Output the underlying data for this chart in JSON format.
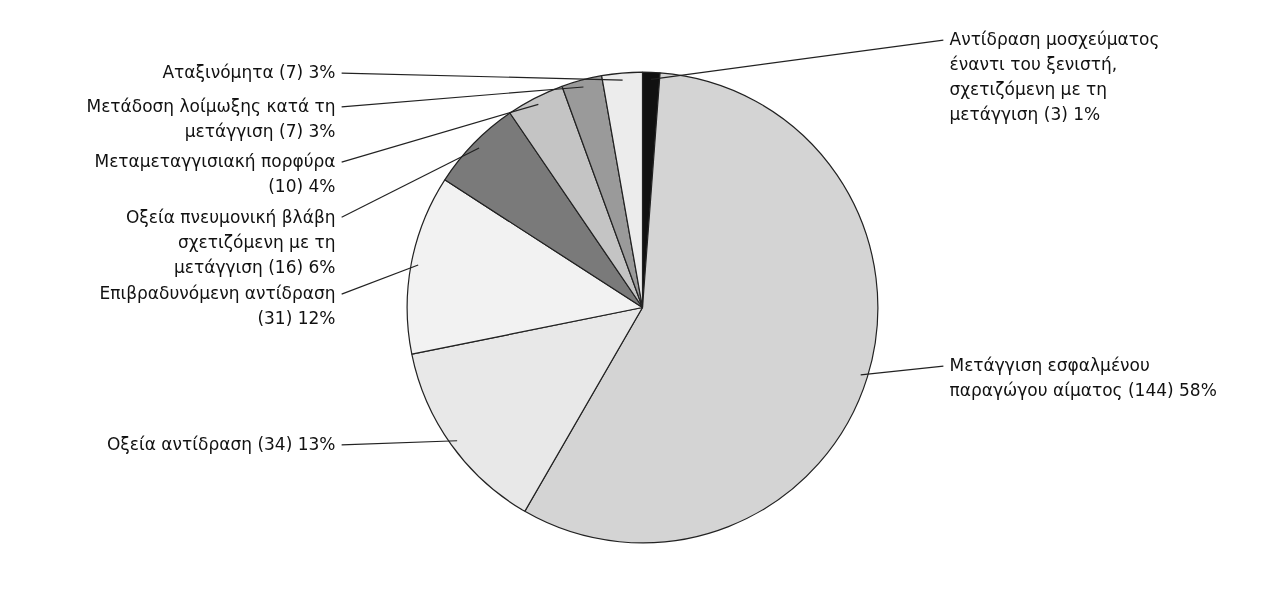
{
  "chart_data": {
    "type": "pie",
    "categories": [
      "Αντίδραση μοσχεύματος έναντι του ξενιστή, σχετιζόμενη με τη μετάγγιση",
      "Μετάγγιση εσφαλμένου παραγώγου αίματος",
      "Οξεία αντίδραση",
      "Επιβραδυνόμενη αντίδραση",
      "Οξεία πνευμονική βλάβη σχετιζόμενη με τη μετάγγιση",
      "Μεταμεταγγισιακή πορφύρα",
      "Μετάδοση λοίμωξης κατά τη μετάγγιση",
      "Αταξινόμητα"
    ],
    "values": [
      3,
      144,
      34,
      31,
      16,
      10,
      7,
      7
    ],
    "value_labels": [
      "(3) 1%",
      "(144) 58%",
      "(34) 13%",
      "(31) 12%",
      "(16) 6%",
      "(10) 4%",
      "(7) 3%",
      "(7) 3%"
    ],
    "colors": [
      "#111111",
      "#d4d4d4",
      "#e8e8e8",
      "#f2f2f2",
      "#7a7a7a",
      "#c4c4c4",
      "#9a9a9a",
      "#ececec"
    ]
  }
}
